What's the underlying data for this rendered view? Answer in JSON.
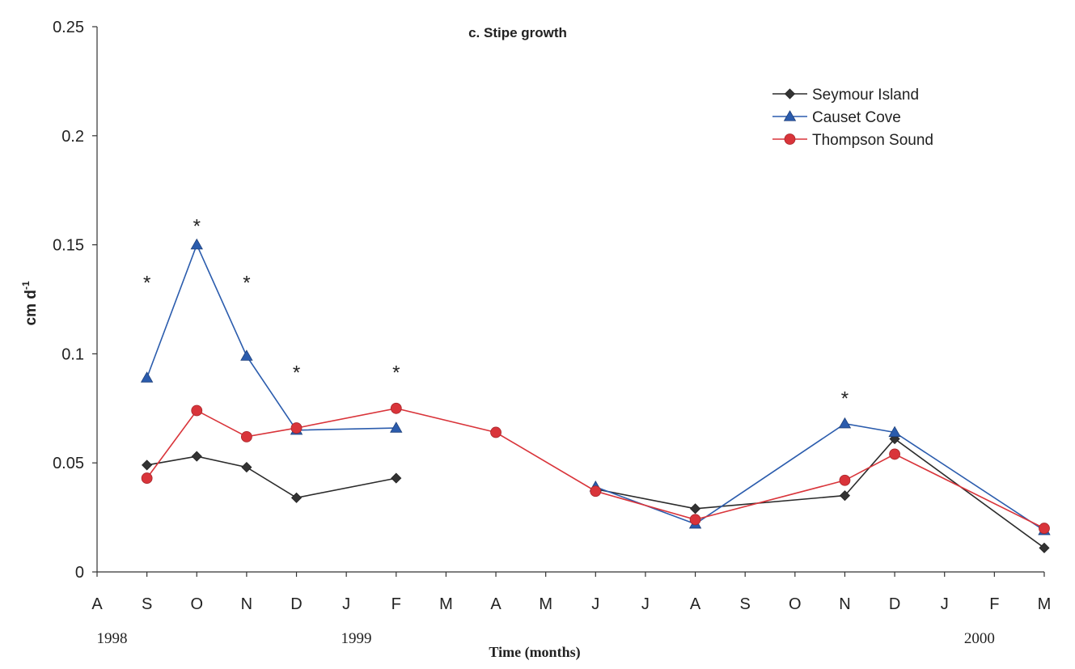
{
  "chart_data": {
    "type": "line",
    "title": "c. Stipe growth",
    "ylabel": "cm d",
    "ylabel_sup": "-1",
    "xlabel": "Time (months)",
    "x_tick_labels": [
      "A",
      "S",
      "O",
      "N",
      "D",
      "J",
      "F",
      "M",
      "A",
      "M",
      "J",
      "J",
      "A",
      "S",
      "O",
      "N",
      "D",
      "J",
      "F",
      "M"
    ],
    "year_labels": [
      {
        "text": "1998",
        "index": 0.3
      },
      {
        "text": "1999",
        "index": 5.2
      },
      {
        "text": "2000",
        "index": 17.7
      }
    ],
    "ylim": [
      0,
      0.25
    ],
    "y_ticks": [
      0,
      0.05,
      0.1,
      0.15,
      0.2,
      0.25
    ],
    "y_tick_labels": [
      "0",
      "0.05",
      "0.1",
      "0.15",
      "0.2",
      "0.25"
    ],
    "legend_position": "top-right",
    "series": [
      {
        "name": "Seymour Island",
        "color": "#2b2b2b",
        "marker": "diamond",
        "segments": [
          [
            [
              1,
              0.049
            ],
            [
              2,
              0.053
            ],
            [
              3,
              0.048
            ],
            [
              4,
              0.034
            ],
            [
              6,
              0.043
            ]
          ],
          [
            [
              10,
              0.038
            ],
            [
              12,
              0.029
            ],
            [
              15,
              0.035
            ],
            [
              16,
              0.061
            ],
            [
              19,
              0.011
            ]
          ]
        ]
      },
      {
        "name": "Causet Cove",
        "color": "#2b5cad",
        "marker": "triangle",
        "segments": [
          [
            [
              1,
              0.089
            ],
            [
              2,
              0.15
            ],
            [
              3,
              0.099
            ],
            [
              4,
              0.065
            ],
            [
              6,
              0.066
            ]
          ],
          [
            [
              10,
              0.039
            ],
            [
              12,
              0.022
            ],
            [
              15,
              0.068
            ],
            [
              16,
              0.064
            ],
            [
              19,
              0.019
            ]
          ]
        ]
      },
      {
        "name": "Thompson Sound",
        "color": "#d9343a",
        "marker": "circle",
        "segments": [
          [
            [
              1,
              0.043
            ],
            [
              2,
              0.074
            ],
            [
              3,
              0.062
            ],
            [
              4,
              0.066
            ],
            [
              6,
              0.075
            ],
            [
              8,
              0.064
            ],
            [
              10,
              0.037
            ],
            [
              12,
              0.024
            ],
            [
              15,
              0.042
            ],
            [
              16,
              0.054
            ],
            [
              19,
              0.02
            ]
          ]
        ]
      }
    ],
    "annotations": [
      {
        "text": "*",
        "x": 1,
        "y": 0.134
      },
      {
        "text": "*",
        "x": 2,
        "y": 0.16
      },
      {
        "text": "*",
        "x": 3,
        "y": 0.134
      },
      {
        "text": "*",
        "x": 4,
        "y": 0.093
      },
      {
        "text": "*",
        "x": 6,
        "y": 0.093
      },
      {
        "text": "*",
        "x": 15,
        "y": 0.081
      }
    ]
  }
}
